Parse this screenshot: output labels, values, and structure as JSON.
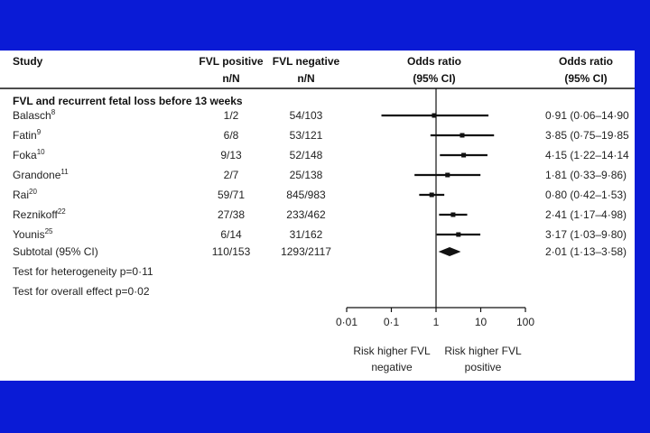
{
  "colors": {
    "slide_background": "#0a1bd6",
    "panel": "#ffffff",
    "ink": "#111111"
  },
  "header": {
    "study": "Study",
    "fvl_pos_line1": "FVL positive",
    "fvl_pos_line2": "n/N",
    "fvl_neg_line1": "FVL negative",
    "fvl_neg_line2": "n/N",
    "or_line1": "Odds ratio",
    "or_line2": "(95% CI)",
    "or2_line1": "Odds ratio",
    "or2_line2": "(95% CI)"
  },
  "section_title": "FVL and recurrent fetal loss before 13 weeks",
  "subtotal": {
    "label": "Subtotal (95% CI)",
    "pos": "110/153",
    "neg": "1293/2117",
    "or_text": "2·01 (1·13–3·58)"
  },
  "tests": {
    "heterogeneity": "Test for heterogeneity p=0·11",
    "overall": "Test for overall effect p=0·02"
  },
  "axis": {
    "ticks": [
      "0·01",
      "0·1",
      "1",
      "10",
      "100"
    ],
    "left_label_1": "Risk higher FVL",
    "left_label_2": "negative",
    "right_label_1": "Risk higher FVL",
    "right_label_2": "positive"
  },
  "chart_data": {
    "type": "forest",
    "xscale": "log",
    "xlim": [
      0.01,
      100
    ],
    "reference_line": 1,
    "studies": [
      {
        "name": "Balasch",
        "ref": "8",
        "pos": "1/2",
        "neg": "54/103",
        "or": 0.91,
        "lo": 0.06,
        "hi": 14.9,
        "or_text": "0·91 (0·06–14·90"
      },
      {
        "name": "Fatin",
        "ref": "9",
        "pos": "6/8",
        "neg": "53/121",
        "or": 3.85,
        "lo": 0.75,
        "hi": 19.85,
        "or_text": "3·85 (0·75–19·85"
      },
      {
        "name": "Foka",
        "ref": "10",
        "pos": "9/13",
        "neg": "52/148",
        "or": 4.15,
        "lo": 1.22,
        "hi": 14.14,
        "or_text": "4·15 (1·22–14·14"
      },
      {
        "name": "Grandone",
        "ref": "11",
        "pos": "2/7",
        "neg": "25/138",
        "or": 1.81,
        "lo": 0.33,
        "hi": 9.86,
        "or_text": "1·81 (0·33–9·86)"
      },
      {
        "name": "Rai",
        "ref": "20",
        "pos": "59/71",
        "neg": "845/983",
        "or": 0.8,
        "lo": 0.42,
        "hi": 1.53,
        "or_text": "0·80 (0·42–1·53)"
      },
      {
        "name": "Reznikoff",
        "ref": "22",
        "pos": "27/38",
        "neg": "233/462",
        "or": 2.41,
        "lo": 1.17,
        "hi": 4.98,
        "or_text": "2·41 (1·17–4·98)"
      },
      {
        "name": "Younis",
        "ref": "25",
        "pos": "6/14",
        "neg": "31/162",
        "or": 3.17,
        "lo": 1.03,
        "hi": 9.8,
        "or_text": "3·17 (1·03–9·80)"
      }
    ],
    "pooled": {
      "or": 2.01,
      "lo": 1.13,
      "hi": 3.58
    }
  }
}
